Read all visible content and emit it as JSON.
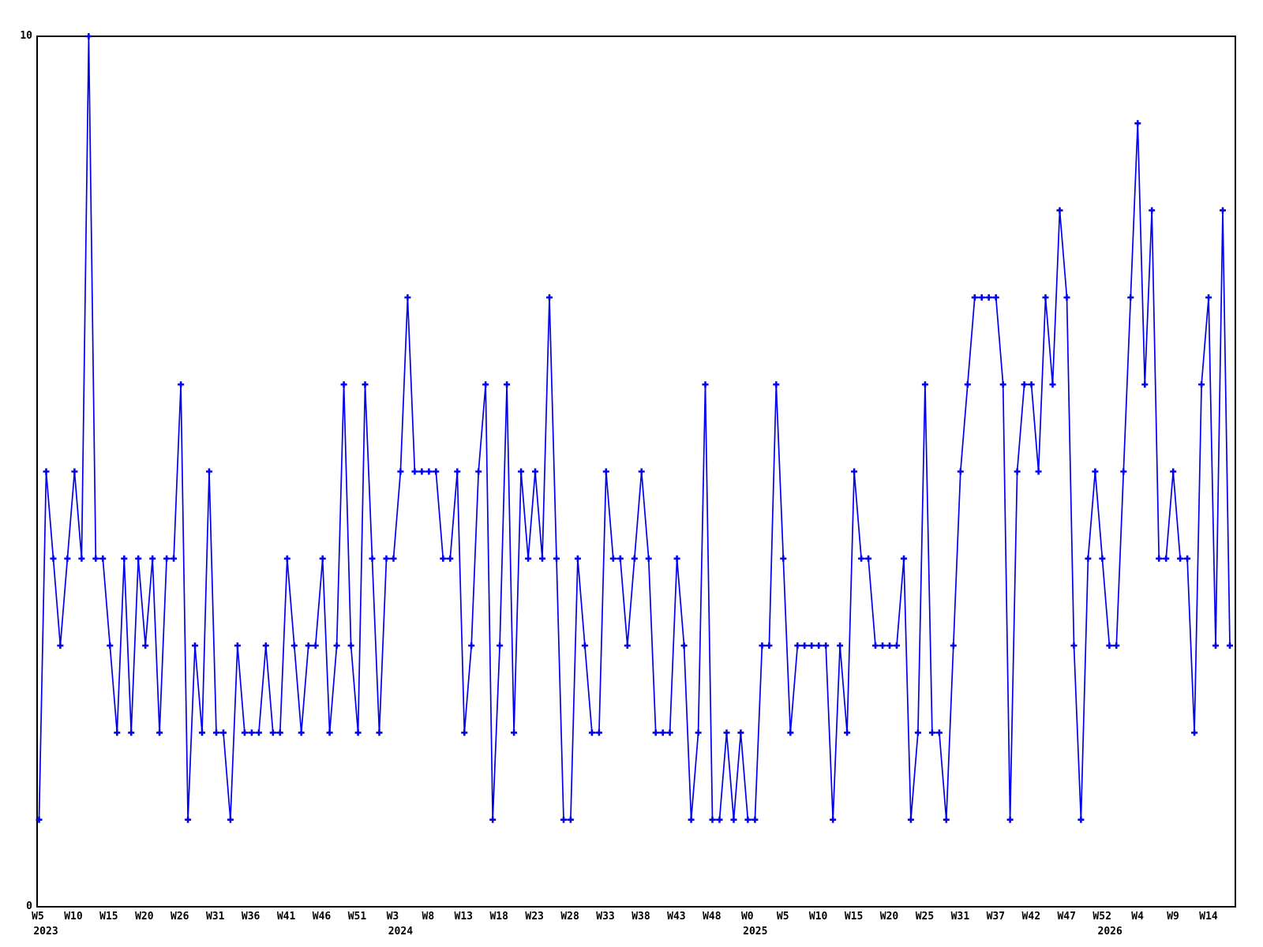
{
  "page": {
    "background": "#ffffff"
  },
  "y_axis": {
    "top_label": "10",
    "bottom_label": "0"
  },
  "chart_data": {
    "type": "line",
    "title": "",
    "xlabel": "",
    "ylabel": "",
    "ylim": [
      0,
      10
    ],
    "grid": false,
    "legend": null,
    "marker": "plus",
    "series_color": "#0000ee",
    "frame_color": "#000000",
    "x_tick_labels": [
      "W5",
      "W10",
      "W15",
      "W20",
      "W26",
      "W31",
      "W36",
      "W41",
      "W46",
      "W51",
      "W3",
      "W8",
      "W13",
      "W18",
      "W23",
      "W28",
      "W33",
      "W38",
      "W43",
      "W48",
      "W0",
      "W5",
      "W10",
      "W15",
      "W20",
      "W25",
      "W31",
      "W37",
      "W42",
      "W47",
      "W52",
      "W4",
      "W9",
      "W14"
    ],
    "year_labels": [
      {
        "text": "2023",
        "tick_index": 0
      },
      {
        "text": "2024",
        "tick_index": 10
      },
      {
        "text": "2025",
        "tick_index": 20
      },
      {
        "text": "2026",
        "tick_index": 30
      }
    ],
    "values": [
      1,
      5,
      4,
      3,
      4,
      5,
      4,
      10,
      4,
      4,
      3,
      2,
      4,
      2,
      4,
      3,
      4,
      2,
      4,
      4,
      6,
      1,
      3,
      2,
      5,
      2,
      2,
      1,
      3,
      2,
      2,
      2,
      3,
      2,
      2,
      4,
      3,
      2,
      3,
      3,
      4,
      2,
      3,
      6,
      3,
      2,
      6,
      4,
      2,
      4,
      4,
      5,
      7,
      5,
      5,
      5,
      5,
      4,
      4,
      5,
      2,
      3,
      5,
      6,
      1,
      3,
      6,
      2,
      5,
      4,
      5,
      4,
      7,
      4,
      1,
      1,
      4,
      3,
      2,
      2,
      5,
      4,
      4,
      3,
      4,
      5,
      4,
      2,
      2,
      2,
      4,
      3,
      1,
      2,
      6,
      1,
      1,
      2,
      1,
      2,
      1,
      1,
      3,
      3,
      6,
      4,
      2,
      3,
      3,
      3,
      3,
      3,
      1,
      3,
      2,
      5,
      4,
      4,
      3,
      3,
      3,
      3,
      4,
      1,
      2,
      6,
      2,
      2,
      1,
      3,
      5,
      6,
      7,
      7,
      7,
      7,
      6,
      1,
      5,
      6,
      6,
      5,
      7,
      6,
      8,
      7,
      3,
      1,
      4,
      5,
      4,
      3,
      3,
      5,
      7,
      9,
      6,
      8,
      4,
      4,
      5,
      4,
      4,
      2,
      6,
      7,
      3,
      8,
      3
    ]
  }
}
